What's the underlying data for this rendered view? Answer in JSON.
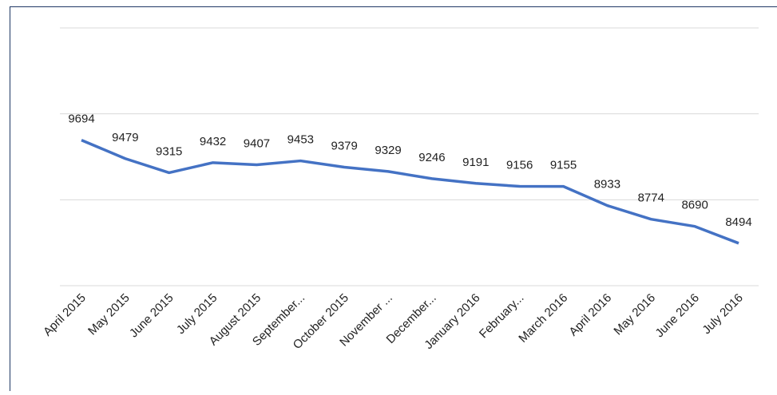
{
  "chart_data": {
    "type": "line",
    "categories": [
      "April 2015",
      "May 2015",
      "June 2015",
      "July 2015",
      "August 2015",
      "September...",
      "October 2015",
      "November ...",
      "December...",
      "January 2016",
      "February...",
      "March 2016",
      "April 2016",
      "May 2016",
      "June 2016",
      "July 2016"
    ],
    "values": [
      9694,
      9479,
      9315,
      9432,
      9407,
      9453,
      9379,
      9329,
      9246,
      9191,
      9156,
      9155,
      8933,
      8774,
      8690,
      8494
    ],
    "color": "#4472c4",
    "ylim": [
      8000,
      11000
    ],
    "yticks": [
      8000,
      9000,
      10000,
      11000
    ],
    "grid": true
  }
}
